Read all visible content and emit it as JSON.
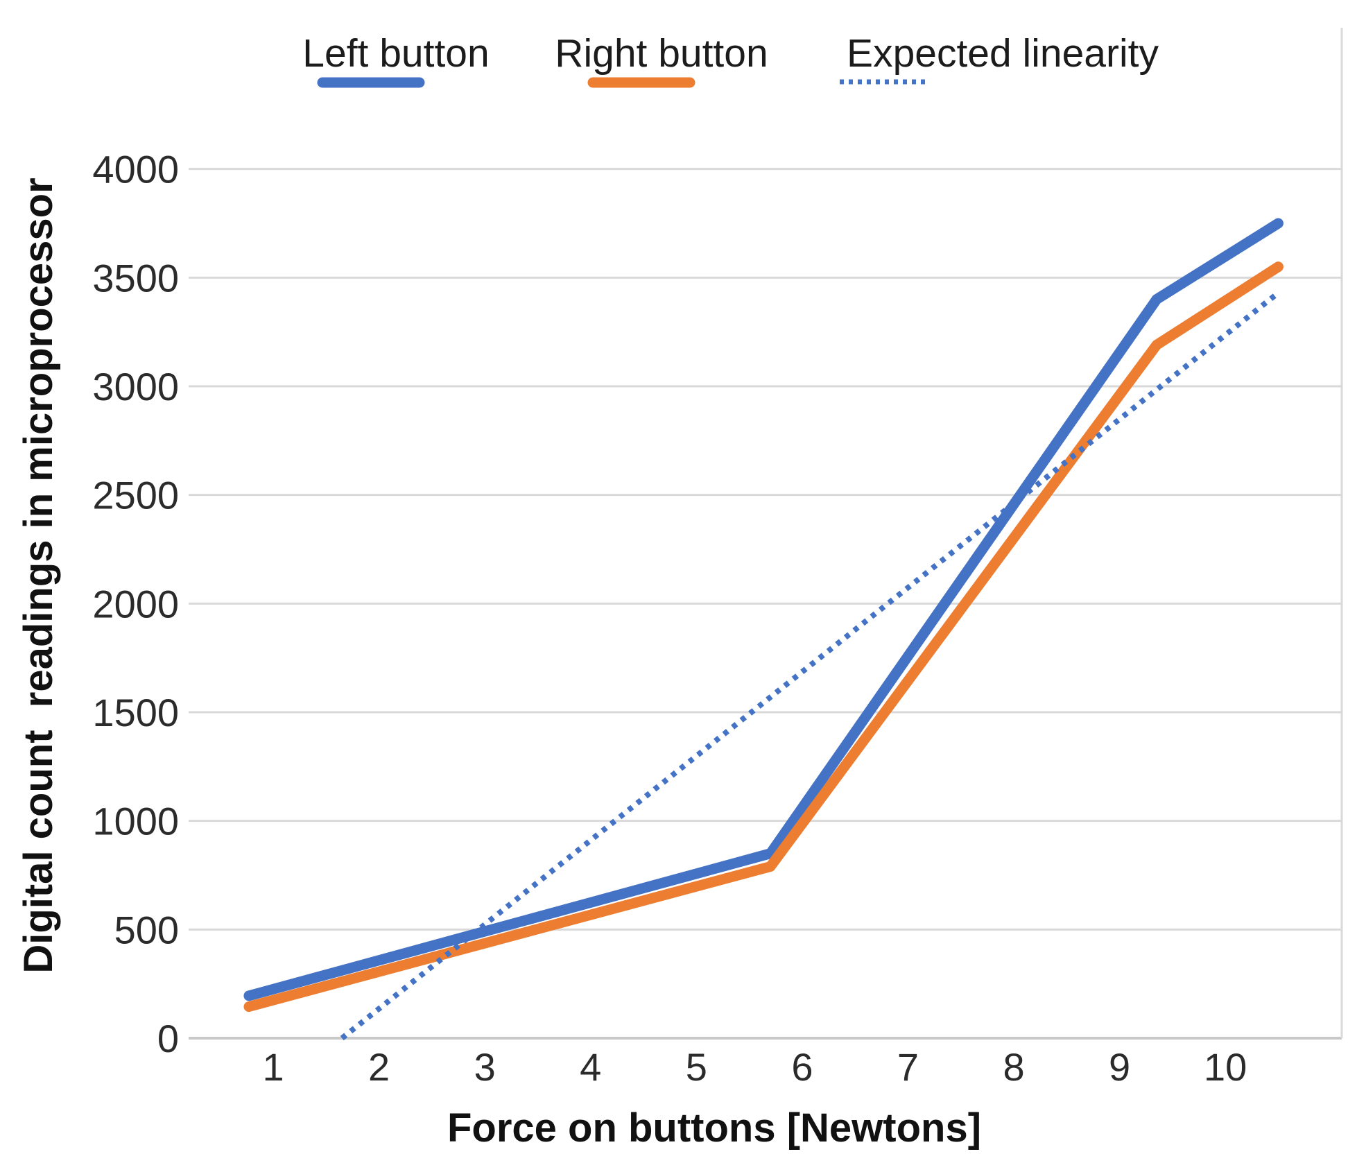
{
  "chart_data": {
    "type": "line",
    "title": "",
    "xlabel": "Force on buttons [Newtons]",
    "ylabel": "Digital count  readings in microprocessor",
    "x_ticks": [
      1,
      2,
      3,
      4,
      5,
      6,
      7,
      8,
      9,
      10
    ],
    "y_ticks": [
      0,
      500,
      1000,
      1500,
      2000,
      2500,
      3000,
      3500,
      4000
    ],
    "xlim": [
      0.2,
      11.1
    ],
    "ylim": [
      0,
      4650
    ],
    "y_axis_max_label": 4000,
    "grid": "horizontal",
    "legend_position": "top",
    "series": [
      {
        "name": "Left button",
        "color": "#4472C4",
        "style": "solid",
        "points": [
          [
            0.77,
            195
          ],
          [
            5.7,
            850
          ],
          [
            9.35,
            3400
          ],
          [
            10.5,
            3750
          ]
        ]
      },
      {
        "name": "Right button",
        "color": "#ED7D31",
        "style": "solid",
        "points": [
          [
            0.77,
            145
          ],
          [
            5.7,
            790
          ],
          [
            9.35,
            3190
          ],
          [
            10.5,
            3550
          ]
        ]
      },
      {
        "name": "Expected linearity",
        "color": "#4472C4",
        "style": "dotted",
        "points": [
          [
            1.65,
            0
          ],
          [
            10.5,
            3430
          ]
        ]
      }
    ]
  },
  "colors": {
    "series_blue": "#4472C4",
    "series_orange": "#ED7D31",
    "gridline": "#d9d9d9",
    "text": "#1c1c1c"
  }
}
